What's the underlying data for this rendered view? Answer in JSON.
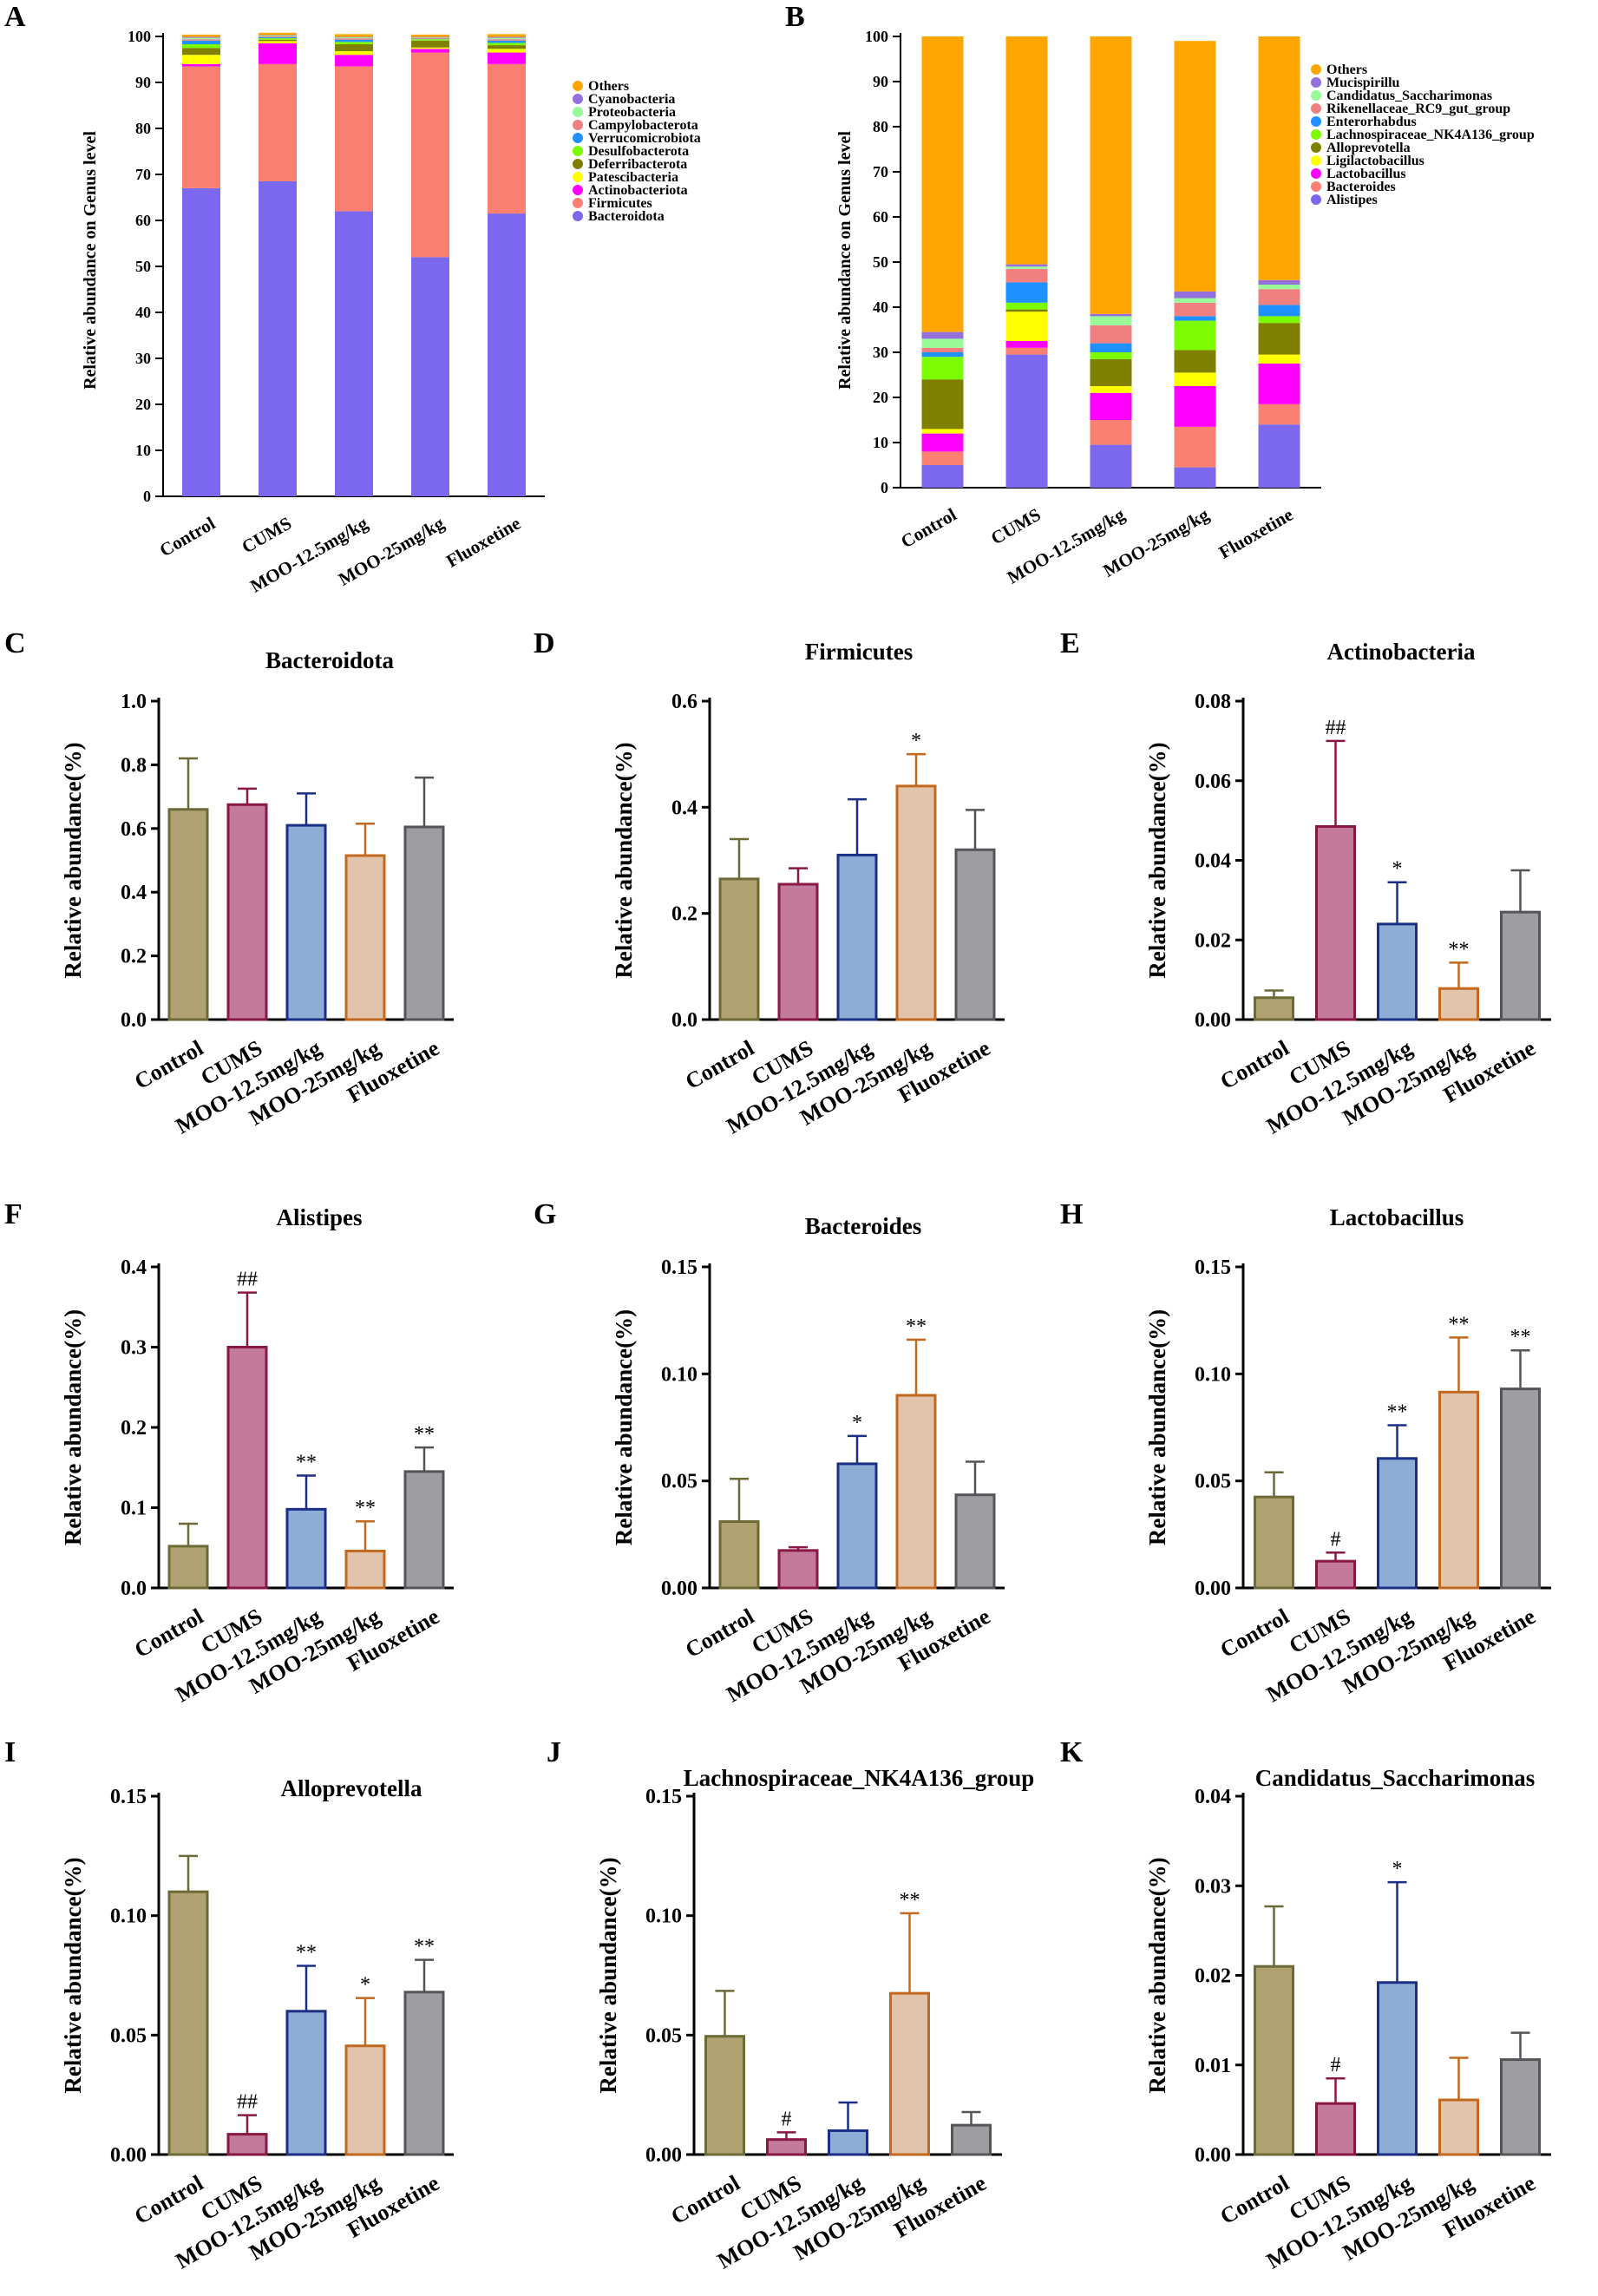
{
  "groups": [
    "Control",
    "CUMS",
    "MOO-12.5mg/kg",
    "MOO-25mg/kg",
    "Fluoxetine"
  ],
  "colors": {
    "group_fill": [
      "#b0a371",
      "#c37a9b",
      "#8eadd6",
      "#e2c3ab",
      "#9e9ea1"
    ],
    "group_edge": [
      "#6c6a36",
      "#8a1844",
      "#1b2f86",
      "#c2681f",
      "#545459"
    ]
  },
  "chart_data": [
    {
      "id": "A",
      "type": "stacked_bar",
      "letter": "A",
      "title": "",
      "ylabel": "Relative abundance on Genus level",
      "ylim": [
        0,
        100
      ],
      "yticks": [
        0,
        10,
        20,
        30,
        40,
        50,
        60,
        70,
        80,
        90,
        100
      ],
      "categories": [
        "Control",
        "CUMS",
        "MOO-12.5mg/kg",
        "MOO-25mg/kg",
        "Fluoxetine"
      ],
      "series": [
        {
          "name": "Bacteroidota",
          "color": "#7b68ee",
          "values": [
            67,
            68.5,
            62,
            52,
            61.5
          ]
        },
        {
          "name": "Firmicutes",
          "color": "#fa8072",
          "values": [
            26.5,
            25.5,
            31.5,
            44.5,
            32.5
          ]
        },
        {
          "name": "Actinobacteriota",
          "color": "#ff00ff",
          "values": [
            0.5,
            4.5,
            2.5,
            0.8,
            2.5
          ]
        },
        {
          "name": "Patescibacteria",
          "color": "#ffff00",
          "values": [
            2.0,
            0.5,
            0.8,
            0.3,
            0.8
          ]
        },
        {
          "name": "Deferribacterota",
          "color": "#808000",
          "values": [
            1.5,
            0.3,
            1.5,
            1.5,
            0.8
          ]
        },
        {
          "name": "Desulfobacterota",
          "color": "#7cfc00",
          "values": [
            0.8,
            0.3,
            0.5,
            0.3,
            0.5
          ]
        },
        {
          "name": "Verrucomicrobiota",
          "color": "#1e90ff",
          "values": [
            0.8,
            0.2,
            0.5,
            0.1,
            0.5
          ]
        },
        {
          "name": "Campylobacterota",
          "color": "#f08080",
          "values": [
            0.3,
            0.2,
            0.3,
            0.2,
            0.3
          ]
        },
        {
          "name": "Proteobacteria",
          "color": "#98fb98",
          "values": [
            0.3,
            0.2,
            0.2,
            0.1,
            0.3
          ]
        },
        {
          "name": "Cyanobacteria",
          "color": "#9370db",
          "values": [
            0.2,
            0.1,
            0.1,
            0.1,
            0.2
          ]
        },
        {
          "name": "Others",
          "color": "#ffa500",
          "values": [
            0.5,
            0.5,
            0.6,
            0.5,
            0.6
          ]
        }
      ]
    },
    {
      "id": "B",
      "type": "stacked_bar",
      "letter": "B",
      "title": "",
      "ylabel": "Relative abundance on Genus level",
      "ylim": [
        0,
        100
      ],
      "yticks": [
        0,
        10,
        20,
        30,
        40,
        50,
        60,
        70,
        80,
        90,
        100
      ],
      "categories": [
        "Control",
        "CUMS",
        "MOO-12.5mg/kg",
        "MOO-25mg/kg",
        "Fluoxetine"
      ],
      "series": [
        {
          "name": "Alistipes",
          "color": "#7b68ee",
          "values": [
            5,
            29.5,
            9.5,
            4.5,
            14
          ]
        },
        {
          "name": "Bacteroides",
          "color": "#fa8072",
          "values": [
            3,
            1.5,
            5.5,
            9,
            4.5
          ]
        },
        {
          "name": "Lactobacillus",
          "color": "#ff00ff",
          "values": [
            4,
            1.5,
            6,
            9,
            9
          ]
        },
        {
          "name": "Ligilactobacillus",
          "color": "#ffff00",
          "values": [
            1,
            6.5,
            1.5,
            3,
            2
          ]
        },
        {
          "name": "Alloprevotella",
          "color": "#808000",
          "values": [
            11,
            0.5,
            6,
            5,
            7
          ]
        },
        {
          "name": "Lachnospiraceae_NK4A136_group",
          "color": "#7cfc00",
          "values": [
            5,
            1.5,
            1.5,
            6.5,
            1.5
          ]
        },
        {
          "name": "Enterorhabdus",
          "color": "#1e90ff",
          "values": [
            1,
            4.5,
            2,
            1,
            2.5
          ]
        },
        {
          "name": "Rikenellaceae_RC9_gut_group",
          "color": "#f08080",
          "values": [
            1,
            3,
            4,
            3,
            3.5
          ]
        },
        {
          "name": "Candidatus_Saccharimonas",
          "color": "#98fb98",
          "values": [
            2,
            0.5,
            2,
            1,
            1
          ]
        },
        {
          "name": "Mucispirillu",
          "color": "#9370db",
          "values": [
            1.5,
            0.5,
            0.5,
            1.5,
            1
          ]
        },
        {
          "name": "Others",
          "color": "#ffa500",
          "values": [
            65.5,
            50.5,
            61.5,
            55.5,
            54
          ]
        }
      ]
    },
    {
      "id": "C",
      "type": "bar",
      "letter": "C",
      "title": "Bacteroidota",
      "ylabel": "Relative abundance(%)",
      "ylim": [
        0,
        1.0
      ],
      "yticks": [
        "0.0",
        "0.2",
        "0.4",
        "0.6",
        "0.8",
        "1.0"
      ],
      "categories": [
        "Control",
        "CUMS",
        "MOO-12.5mg/kg",
        "MOO-25mg/kg",
        "Fluoxetine"
      ],
      "values": [
        0.66,
        0.675,
        0.61,
        0.515,
        0.605
      ],
      "errors": [
        0.16,
        0.05,
        0.1,
        0.1,
        0.155
      ],
      "significance": [
        "",
        "",
        "",
        "",
        ""
      ]
    },
    {
      "id": "D",
      "type": "bar",
      "letter": "D",
      "title": "Firmicutes",
      "ylabel": "Relative abundance(%)",
      "ylim": [
        0,
        0.6
      ],
      "yticks": [
        "0.0",
        "0.2",
        "0.4",
        "0.6"
      ],
      "categories": [
        "Control",
        "CUMS",
        "MOO-12.5mg/kg",
        "MOO-25mg/kg",
        "Fluoxetine"
      ],
      "values": [
        0.265,
        0.255,
        0.31,
        0.44,
        0.32
      ],
      "errors": [
        0.075,
        0.03,
        0.105,
        0.06,
        0.075
      ],
      "significance": [
        "",
        "",
        "",
        "*",
        ""
      ]
    },
    {
      "id": "E",
      "type": "bar",
      "letter": "E",
      "title": "Actinobacteria",
      "ylabel": "Relative abundance(%)",
      "ylim": [
        0,
        0.08
      ],
      "yticks": [
        "0.00",
        "0.02",
        "0.04",
        "0.06",
        "0.08"
      ],
      "categories": [
        "Control",
        "CUMS",
        "MOO-12.5mg/kg",
        "MOO-25mg/kg",
        "Fluoxetine"
      ],
      "values": [
        0.0055,
        0.0485,
        0.024,
        0.0078,
        0.027
      ],
      "errors": [
        0.0018,
        0.0215,
        0.0105,
        0.0065,
        0.0105
      ],
      "significance": [
        "",
        "##",
        "*",
        "**",
        ""
      ]
    },
    {
      "id": "F",
      "type": "bar",
      "letter": "F",
      "title": "Alistipes",
      "ylabel": "Relative abundance(%)",
      "ylim": [
        0,
        0.4
      ],
      "yticks": [
        "0.0",
        "0.1",
        "0.2",
        "0.3",
        "0.4"
      ],
      "categories": [
        "Control",
        "CUMS",
        "MOO-12.5mg/kg",
        "MOO-25mg/kg",
        "Fluoxetine"
      ],
      "values": [
        0.052,
        0.3,
        0.098,
        0.046,
        0.145
      ],
      "errors": [
        0.028,
        0.068,
        0.042,
        0.037,
        0.03
      ],
      "significance": [
        "",
        "##",
        "**",
        "**",
        "**"
      ]
    },
    {
      "id": "G",
      "type": "bar",
      "letter": "G",
      "title": "Bacteroides",
      "ylabel": "Relative abundance(%)",
      "ylim": [
        0,
        0.15
      ],
      "yticks": [
        "0.00",
        "0.05",
        "0.10",
        "0.15"
      ],
      "categories": [
        "Control",
        "CUMS",
        "MOO-12.5mg/kg",
        "MOO-25mg/kg",
        "Fluoxetine"
      ],
      "values": [
        0.031,
        0.0175,
        0.058,
        0.09,
        0.0435
      ],
      "errors": [
        0.02,
        0.0015,
        0.013,
        0.026,
        0.0155
      ],
      "significance": [
        "",
        "",
        "*",
        "**",
        ""
      ]
    },
    {
      "id": "H",
      "type": "bar",
      "letter": "H",
      "title": "Lactobacillus",
      "ylabel": "Relative abundance(%)",
      "ylim": [
        0,
        0.15
      ],
      "yticks": [
        "0.00",
        "0.05",
        "0.10",
        "0.15"
      ],
      "categories": [
        "Control",
        "CUMS",
        "MOO-12.5mg/kg",
        "MOO-25mg/kg",
        "Fluoxetine"
      ],
      "values": [
        0.0425,
        0.0125,
        0.0605,
        0.0915,
        0.093
      ],
      "errors": [
        0.0115,
        0.004,
        0.0155,
        0.0255,
        0.018
      ],
      "significance": [
        "",
        "#",
        "**",
        "**",
        "**"
      ]
    },
    {
      "id": "I",
      "type": "bar",
      "letter": "I",
      "title": "Alloprevotella",
      "ylabel": "Relative abundance(%)",
      "ylim": [
        0,
        0.15
      ],
      "yticks": [
        "0.00",
        "0.05",
        "0.10",
        "0.15"
      ],
      "categories": [
        "Control",
        "CUMS",
        "MOO-12.5mg/kg",
        "MOO-25mg/kg",
        "Fluoxetine"
      ],
      "values": [
        0.11,
        0.0085,
        0.06,
        0.0455,
        0.068
      ],
      "errors": [
        0.015,
        0.008,
        0.019,
        0.02,
        0.0135
      ],
      "significance": [
        "",
        "##",
        "**",
        "*",
        "**"
      ]
    },
    {
      "id": "J",
      "type": "bar",
      "letter": "J",
      "title": "Lachnospiraceae_NK4A136_group",
      "ylabel": "Relative abundance(%)",
      "ylim": [
        0,
        0.15
      ],
      "yticks": [
        "0.00",
        "0.05",
        "0.10",
        "0.15"
      ],
      "categories": [
        "Control",
        "CUMS",
        "MOO-12.5mg/kg",
        "MOO-25mg/kg",
        "Fluoxetine"
      ],
      "values": [
        0.0495,
        0.0063,
        0.01,
        0.0675,
        0.0123
      ],
      "errors": [
        0.019,
        0.003,
        0.0118,
        0.0335,
        0.0055
      ],
      "significance": [
        "",
        "#",
        "",
        "**",
        ""
      ]
    },
    {
      "id": "K",
      "type": "bar",
      "letter": "K",
      "title": "Candidatus_Saccharimonas",
      "ylabel": "Relative abundance(%)",
      "ylim": [
        0,
        0.04
      ],
      "yticks": [
        "0.00",
        "0.01",
        "0.02",
        "0.03",
        "0.04"
      ],
      "categories": [
        "Control",
        "CUMS",
        "MOO-12.5mg/kg",
        "MOO-25mg/kg",
        "Fluoxetine"
      ],
      "values": [
        0.021,
        0.0057,
        0.0192,
        0.0061,
        0.0106
      ],
      "errors": [
        0.0067,
        0.0028,
        0.0112,
        0.0047,
        0.003
      ],
      "significance": [
        "",
        "#",
        "*",
        "",
        ""
      ]
    }
  ]
}
